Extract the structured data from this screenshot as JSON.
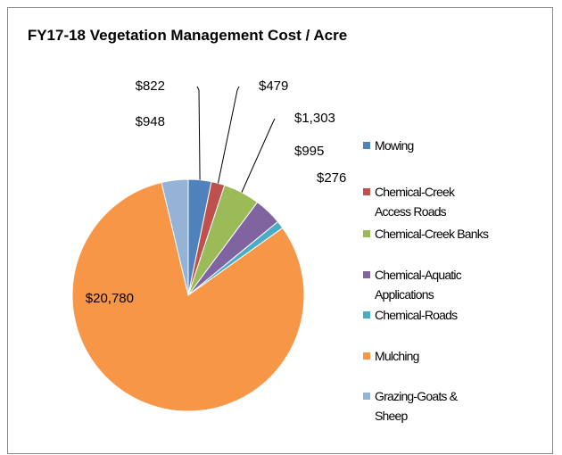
{
  "chart_data": {
    "type": "pie",
    "title": "FY17-18 Vegetation Management Cost / Acre",
    "categories": [
      "Mowing",
      "Chemical-Creek Access Roads",
      "Chemical-Creek Banks",
      "Chemical-Aquatic Applications",
      "Chemical-Roads",
      "Mulching",
      "Grazing-Goats & Sheep"
    ],
    "values": [
      822,
      479,
      1303,
      995,
      276,
      20780,
      948
    ],
    "value_labels": [
      "$822",
      "$479",
      "$1,303",
      "$995",
      "$276",
      "$20,780",
      "$948"
    ],
    "colors": [
      "#4f81bd",
      "#c0504d",
      "#9bbb59",
      "#8064a2",
      "#4bacc6",
      "#f79646",
      "#95b3d7"
    ],
    "legend": "right"
  }
}
